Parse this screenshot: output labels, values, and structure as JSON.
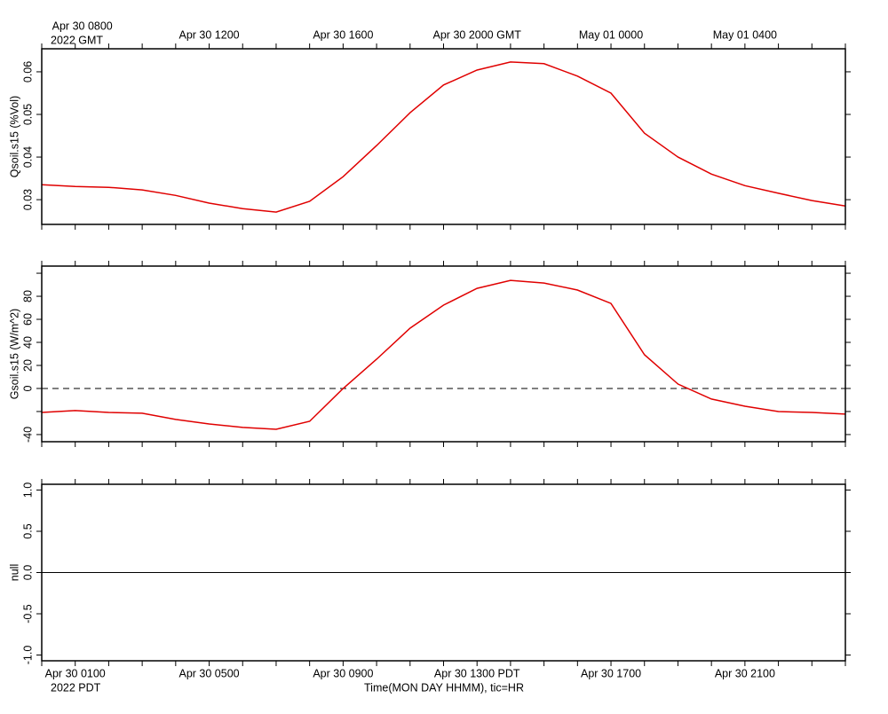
{
  "time_axis": {
    "xlim": [
      0,
      24
    ],
    "minor_ticks": [
      0,
      1,
      2,
      3,
      4,
      5,
      6,
      7,
      8,
      9,
      10,
      11,
      12,
      13,
      14,
      15,
      16,
      17,
      18,
      19,
      20,
      21,
      22,
      23,
      24
    ],
    "top_ticks": [
      {
        "value": 1,
        "label": "Apr 30 0800"
      },
      {
        "value": 5,
        "label": "Apr 30 1200"
      },
      {
        "value": 9,
        "label": "Apr 30 1600"
      },
      {
        "value": 13,
        "label": "Apr 30 2000 GMT"
      },
      {
        "value": 17,
        "label": "May 01 0000"
      },
      {
        "value": 21,
        "label": "May 01 0400"
      }
    ],
    "top_note": "2022 GMT",
    "bottom_ticks": [
      {
        "value": 1,
        "label": "Apr 30 0100"
      },
      {
        "value": 5,
        "label": "Apr 30 0500"
      },
      {
        "value": 9,
        "label": "Apr 30 0900"
      },
      {
        "value": 13,
        "label": "Apr 30 1300 PDT"
      },
      {
        "value": 17,
        "label": "Apr 30 1700"
      },
      {
        "value": 21,
        "label": "Apr 30 2100"
      }
    ],
    "bottom_note": "2022 PDT",
    "title": "Time(MON DAY HHMM), tic=HR"
  },
  "chart_data": [
    {
      "type": "line",
      "ylabel": "Qsoil.s15 (%Vol)",
      "ylim": [
        0.0242,
        0.0654
      ],
      "yticks": [
        0.03,
        0.04,
        0.05,
        0.06
      ],
      "x": [
        0,
        1,
        2,
        3,
        4,
        5,
        6,
        7,
        8,
        9,
        10,
        11,
        12,
        13,
        14,
        15,
        16,
        17,
        18,
        19,
        20,
        21,
        22,
        23,
        24
      ],
      "series": [
        {
          "name": "Qsoil.s15",
          "color": "#e00000",
          "values": [
            0.0335,
            0.0331,
            0.0329,
            0.0323,
            0.031,
            0.0292,
            0.0279,
            0.0271,
            0.0296,
            0.0354,
            0.0427,
            0.0504,
            0.0569,
            0.0604,
            0.0623,
            0.0619,
            0.059,
            0.055,
            0.0456,
            0.04,
            0.036,
            0.0333,
            0.0315,
            0.0298,
            0.0285
          ]
        }
      ]
    },
    {
      "type": "line",
      "ylabel": "Gsoil.s15 (W/m^2)",
      "ylim": [
        -46.2,
        106.2
      ],
      "yticks": [
        -40,
        0,
        20,
        40,
        60,
        80
      ],
      "minor_yticks": [
        -20,
        100
      ],
      "zero_line": "dashed",
      "x": [
        0,
        1,
        2,
        3,
        4,
        5,
        6,
        7,
        8,
        9,
        10,
        11,
        12,
        13,
        14,
        15,
        16,
        17,
        18,
        19,
        20,
        21,
        22,
        23,
        24
      ],
      "series": [
        {
          "name": "Gsoil.s15",
          "color": "#e00000",
          "values": [
            -20.8,
            -19.2,
            -20.8,
            -21.5,
            -26.9,
            -30.8,
            -33.8,
            -35.4,
            -28.5,
            0,
            25.4,
            52.3,
            72.3,
            86.9,
            93.8,
            91.5,
            85.4,
            73.8,
            29.2,
            3.8,
            -9.2,
            -15.4,
            -20,
            -20.8,
            -22.3
          ]
        }
      ]
    },
    {
      "type": "line",
      "ylabel": "null",
      "ylim": [
        -1.07,
        1.07
      ],
      "zero_line": "solid",
      "yticks": [
        {
          "value": -1,
          "label": "-1.0"
        },
        -0.5,
        {
          "value": 0,
          "label": "0.0"
        },
        0.5,
        {
          "value": 1,
          "label": "1.0"
        }
      ],
      "series": []
    }
  ]
}
